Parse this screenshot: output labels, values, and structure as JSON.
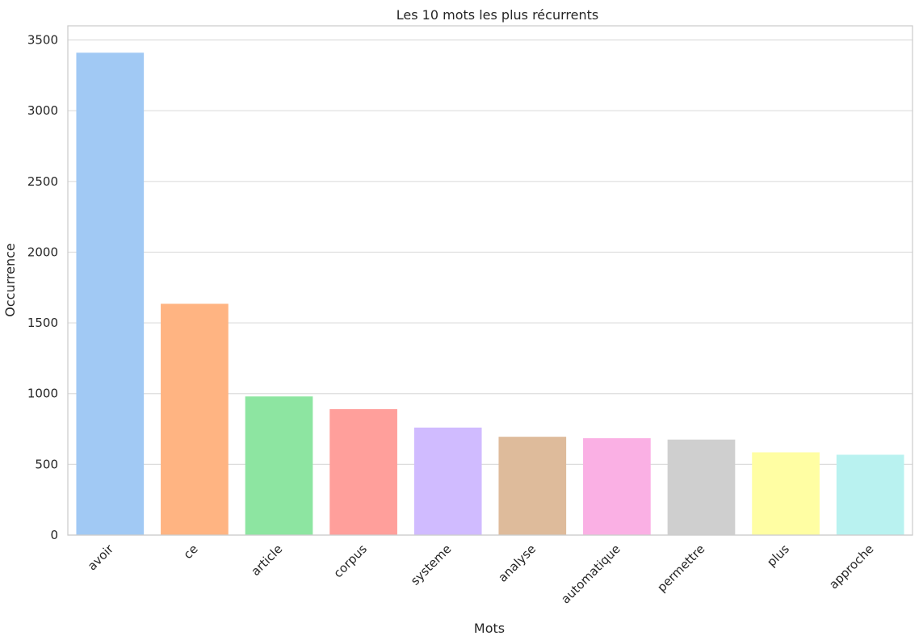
{
  "chart_data": {
    "type": "bar",
    "title": "Les 10 mots les plus récurrents",
    "xlabel": "Mots",
    "ylabel": "Occurrence",
    "categories": [
      "avoir",
      "ce",
      "article",
      "corpus",
      "systeme",
      "analyse",
      "automatique",
      "permettre",
      "plus",
      "approche"
    ],
    "values": [
      3410,
      1635,
      980,
      890,
      760,
      695,
      685,
      675,
      585,
      568
    ],
    "ylim": [
      0,
      3600
    ],
    "yticks": [
      0,
      500,
      1000,
      1500,
      2000,
      2500,
      3000,
      3500
    ],
    "grid": "horizontal",
    "colors": [
      "#a1c9f4",
      "#ffb482",
      "#8de5a1",
      "#ff9f9b",
      "#d0bbff",
      "#debb9b",
      "#fab0e4",
      "#cfcfcf",
      "#fffea3",
      "#b9f2f0"
    ]
  }
}
